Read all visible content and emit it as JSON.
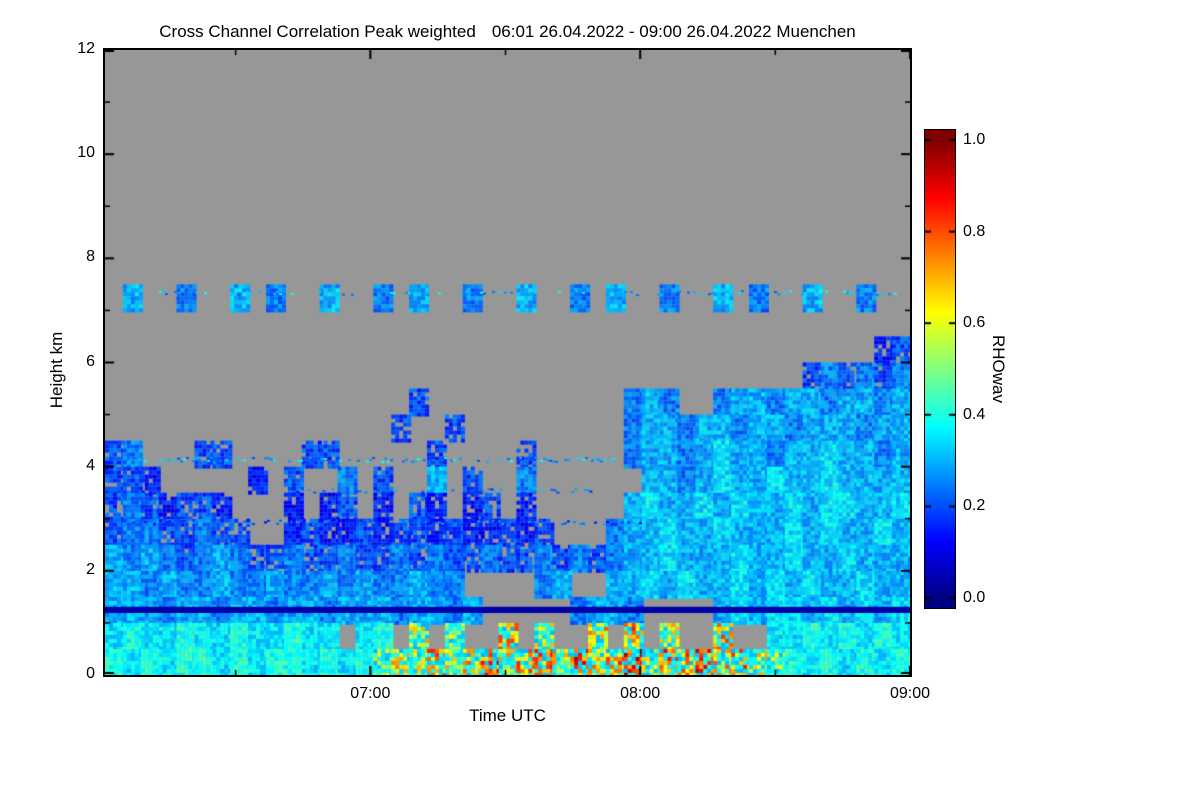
{
  "chart_data": {
    "type": "heatmap",
    "title": "Cross Channel Correlation Peak weighted",
    "subtitle": "06:01 26.04.2022 - 09:00 26.04.2022 Muenchen",
    "xlabel": "Time UTC",
    "ylabel": "Height km",
    "colorbar_label": "RHOwav",
    "colormap": "jet",
    "missing_color": "#979797",
    "x_range_utc": [
      "06:01",
      "09:00"
    ],
    "x_ticks": [
      "07:00",
      "08:00",
      "09:00"
    ],
    "x_minor_ticks": [
      "06:30",
      "07:30",
      "08:30"
    ],
    "y_range_km": [
      0,
      12
    ],
    "y_ticks": [
      0,
      2,
      4,
      6,
      8,
      10,
      12
    ],
    "y_minor_ticks": [
      1,
      3,
      5,
      7,
      9,
      11
    ],
    "colorbar_range": [
      0.0,
      1.0
    ],
    "colorbar_ticks": [
      0.0,
      0.2,
      0.4,
      0.6,
      0.8,
      1.0
    ],
    "grid": {
      "rows": 24,
      "cols": 45,
      "missing_value": -1,
      "y_top_km": 12,
      "y_bottom_km": 0,
      "values": [
        null,
        null,
        null,
        null,
        null,
        null,
        null,
        null,
        null,
        [
          -1,
          0.3,
          -1,
          -1,
          0.25,
          -1,
          -1,
          0.3,
          -1,
          0.25,
          -1,
          -1,
          0.3,
          -1,
          -1,
          0.25,
          -1,
          0.3,
          -1,
          -1,
          0.25,
          -1,
          -1,
          0.3,
          -1,
          -1,
          0.25,
          -1,
          0.3,
          -1,
          -1,
          0.25,
          -1,
          -1,
          0.3,
          -1,
          0.25,
          -1,
          -1,
          0.3,
          -1,
          -1,
          0.25,
          -1,
          -1
        ],
        null,
        [
          -1,
          -1,
          -1,
          -1,
          -1,
          -1,
          -1,
          -1,
          -1,
          -1,
          -1,
          -1,
          -1,
          -1,
          -1,
          -1,
          -1,
          -1,
          -1,
          -1,
          -1,
          -1,
          -1,
          -1,
          -1,
          -1,
          -1,
          -1,
          -1,
          -1,
          -1,
          -1,
          -1,
          -1,
          -1,
          -1,
          -1,
          -1,
          -1,
          -1,
          -1,
          -1,
          -1,
          0.15,
          0.2
        ],
        [
          -1,
          -1,
          -1,
          -1,
          -1,
          -1,
          -1,
          -1,
          -1,
          -1,
          -1,
          -1,
          -1,
          -1,
          -1,
          -1,
          -1,
          -1,
          -1,
          -1,
          -1,
          -1,
          -1,
          -1,
          -1,
          -1,
          -1,
          -1,
          -1,
          -1,
          -1,
          -1,
          -1,
          -1,
          -1,
          -1,
          -1,
          -1,
          -1,
          0.2,
          0.25,
          0.2,
          0.25,
          0.2,
          0.25
        ],
        [
          -1,
          -1,
          -1,
          -1,
          -1,
          -1,
          -1,
          -1,
          -1,
          -1,
          -1,
          -1,
          -1,
          -1,
          -1,
          -1,
          -1,
          0.2,
          -1,
          -1,
          -1,
          -1,
          -1,
          -1,
          -1,
          -1,
          -1,
          -1,
          -1,
          0.25,
          0.3,
          0.25,
          -1,
          -1,
          0.25,
          0.3,
          0.3,
          0.25,
          0.3,
          0.3,
          0.25,
          0.3,
          0.3,
          0.25,
          0.3
        ],
        [
          -1,
          -1,
          -1,
          -1,
          -1,
          -1,
          -1,
          -1,
          -1,
          -1,
          -1,
          -1,
          -1,
          -1,
          -1,
          -1,
          0.2,
          -1,
          -1,
          0.2,
          -1,
          -1,
          -1,
          -1,
          -1,
          -1,
          -1,
          -1,
          -1,
          0.25,
          0.3,
          0.3,
          0.25,
          0.3,
          0.3,
          0.25,
          0.3,
          0.3,
          0.25,
          0.3,
          0.3,
          0.3,
          0.25,
          0.3,
          0.3
        ],
        [
          0.2,
          0.25,
          -1,
          -1,
          -1,
          0.2,
          0.2,
          -1,
          -1,
          -1,
          -1,
          0.2,
          0.2,
          -1,
          -1,
          -1,
          -1,
          -1,
          0.2,
          -1,
          -1,
          -1,
          -1,
          0.2,
          -1,
          -1,
          -1,
          -1,
          -1,
          0.25,
          0.3,
          0.3,
          0.25,
          0.3,
          0.35,
          0.3,
          0.3,
          0.25,
          0.3,
          0.3,
          0.35,
          0.3,
          0.3,
          0.25,
          0.3
        ],
        [
          0.2,
          0.2,
          0.15,
          -1,
          -1,
          -1,
          -1,
          -1,
          0.15,
          -1,
          0.2,
          -1,
          -1,
          0.25,
          -1,
          0.2,
          -1,
          -1,
          0.3,
          -1,
          0.2,
          -1,
          -1,
          0.25,
          -1,
          -1,
          -1,
          -1,
          -1,
          -1,
          0.3,
          0.3,
          0.25,
          0.3,
          0.35,
          0.3,
          0.3,
          0.35,
          0.3,
          0.3,
          0.35,
          0.3,
          0.3,
          0.3,
          0.3
        ],
        [
          0.2,
          0.25,
          0.2,
          0.15,
          0.2,
          0.2,
          0.15,
          -1,
          -1,
          -1,
          0.15,
          -1,
          0.15,
          0.2,
          -1,
          0.15,
          -1,
          0.2,
          0.15,
          -1,
          0.15,
          0.2,
          -1,
          0.15,
          -1,
          -1,
          -1,
          -1,
          -1,
          0.3,
          0.35,
          0.3,
          0.3,
          0.35,
          0.3,
          0.35,
          0.3,
          0.3,
          0.35,
          0.3,
          0.35,
          0.35,
          0.3,
          0.3,
          0.35
        ],
        [
          0.2,
          0.25,
          0.25,
          0.2,
          0.2,
          0.25,
          0.2,
          0.2,
          -1,
          -1,
          0.15,
          0.2,
          0.15,
          0.15,
          0.2,
          0.15,
          0.2,
          0.2,
          0.15,
          0.2,
          0.15,
          0.15,
          0.2,
          0.15,
          0.2,
          -1,
          -1,
          -1,
          0.25,
          0.3,
          0.3,
          0.35,
          0.3,
          0.3,
          0.35,
          0.3,
          0.3,
          0.3,
          0.35,
          0.3,
          0.35,
          0.3,
          0.3,
          0.35,
          0.3
        ],
        [
          0.3,
          0.25,
          0.3,
          0.25,
          0.2,
          0.25,
          0.3,
          0.25,
          0.2,
          0.2,
          0.25,
          0.2,
          0.2,
          0.25,
          0.2,
          0.2,
          0.25,
          0.2,
          0.25,
          0.2,
          0.2,
          0.25,
          0.2,
          0.2,
          0.25,
          0.2,
          0.25,
          0.2,
          0.25,
          0.3,
          0.3,
          0.35,
          0.3,
          0.3,
          0.3,
          0.35,
          0.3,
          0.3,
          0.35,
          0.3,
          0.3,
          0.35,
          0.3,
          0.3,
          0.3
        ],
        [
          0.3,
          0.3,
          0.25,
          0.3,
          0.25,
          0.25,
          0.3,
          0.25,
          0.25,
          0.3,
          0.25,
          0.25,
          0.3,
          0.25,
          0.3,
          0.25,
          0.25,
          0.3,
          0.25,
          0.25,
          -1,
          -1,
          -1,
          -1,
          0.25,
          0.3,
          -1,
          -1,
          0.3,
          0.3,
          0.35,
          0.3,
          0.35,
          0.3,
          0.3,
          0.35,
          0.3,
          0.35,
          0.3,
          0.35,
          0.3,
          0.3,
          0.35,
          0.3,
          0.3
        ],
        [
          0.3,
          0.3,
          0.3,
          0.25,
          0.3,
          0.3,
          0.25,
          0.3,
          0.3,
          0.25,
          0.3,
          0.3,
          0.25,
          0.3,
          0.3,
          0.3,
          0.25,
          0.3,
          0.3,
          0.25,
          0.3,
          -1,
          -1,
          -1,
          -1,
          -1,
          0.25,
          0.3,
          0.3,
          0.25,
          -1,
          -1,
          -1,
          -1,
          0.3,
          0.35,
          0.3,
          0.35,
          0.35,
          0.3,
          0.35,
          0.3,
          0.35,
          0.3,
          0.35
        ],
        [
          0.35,
          0.4,
          0.35,
          0.35,
          0.4,
          0.35,
          0.35,
          0.4,
          0.35,
          0.35,
          0.4,
          0.35,
          0.35,
          -1,
          0.35,
          0.4,
          -1,
          0.6,
          -1,
          0.5,
          -1,
          -1,
          0.7,
          -1,
          0.6,
          -1,
          -1,
          0.65,
          -1,
          0.7,
          -1,
          0.6,
          -1,
          -1,
          0.7,
          -1,
          -1,
          0.35,
          0.35,
          0.4,
          0.35,
          0.4,
          0.35,
          0.4,
          0.35
        ],
        [
          0.4,
          0.35,
          0.4,
          0.35,
          0.4,
          0.4,
          0.35,
          0.4,
          0.35,
          0.4,
          0.4,
          0.35,
          0.4,
          0.35,
          0.4,
          0.5,
          0.6,
          0.55,
          0.7,
          0.6,
          0.65,
          0.8,
          0.6,
          0.7,
          0.75,
          0.6,
          0.8,
          0.65,
          0.7,
          0.85,
          0.6,
          0.75,
          0.7,
          0.8,
          0.65,
          0.7,
          0.6,
          0.5,
          0.4,
          0.35,
          0.4,
          0.35,
          0.4,
          0.35,
          0.4
        ]
      ]
    },
    "features": [
      {
        "type": "sparse_dot_layer",
        "height_km": 7.35,
        "value": 0.3,
        "density": 0.3
      },
      {
        "type": "sparse_dot_layer",
        "height_km": 4.15,
        "value": 0.3,
        "density": 0.5,
        "x_end_utc": "07:55"
      },
      {
        "type": "sparse_dot_layer",
        "height_km": 3.55,
        "value": 0.25,
        "density": 0.35,
        "x_start_utc": "06:40",
        "x_end_utc": "07:50"
      },
      {
        "type": "sparse_dot_layer",
        "height_km": 2.95,
        "value": 0.2,
        "density": 0.4,
        "x_start_utc": "06:05",
        "x_end_utc": "08:00"
      },
      {
        "type": "solid_layer",
        "height_km": 1.25,
        "thickness_km": 0.12,
        "value": 0.04
      }
    ]
  }
}
